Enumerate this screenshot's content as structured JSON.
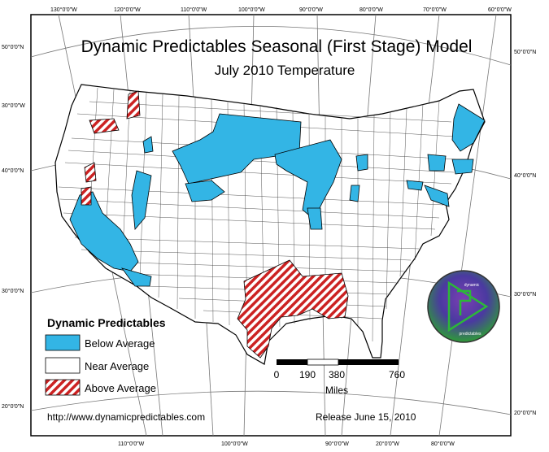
{
  "title": "Dynamic Predictables Seasonal (First Stage) Model",
  "subtitle": "July 2010 Temperature",
  "graticule_top": [
    "130°0'0\"W",
    "120°0'0\"W",
    "110°0'0\"W",
    "100°0'0\"W",
    "90°0'0\"W",
    "80°0'0\"W",
    "70°0'0\"W",
    "60°0'0\"W"
  ],
  "graticule_bottom": [
    "110°0'0\"W",
    "100°0'0\"W",
    "90°0'0\"W",
    "20°0'0\"W",
    "80°0'0\"W"
  ],
  "graticule_left": [
    "50°0'0\"N",
    "30°0'0\"W",
    "40°0'0\"N",
    "30°0'0\"N",
    "20°0'0\"N"
  ],
  "graticule_right": [
    "50°0'0\"N",
    "40°0'0\"N",
    "30°0'0\"N",
    "20°0'0\"N"
  ],
  "legend": {
    "title": "Dynamic Predictables",
    "items": [
      {
        "label": "Below Average",
        "color": "#33b5e5"
      },
      {
        "label": "Near Average",
        "color": "#ffffff"
      },
      {
        "label": "Above Average",
        "color": "#cc2222"
      }
    ]
  },
  "scale_bar": {
    "ticks": [
      "0",
      "190",
      "380",
      "760"
    ],
    "unit": "Miles"
  },
  "footer": {
    "url": "http://www.dynamicpredictables.com",
    "release": "Release June 15, 2010"
  },
  "logo": {
    "top_text": "dynamic",
    "bottom_text": "predictables"
  },
  "colors": {
    "below": "#33b5e5",
    "above_stripe": "#cc2222",
    "border": "#000000"
  }
}
